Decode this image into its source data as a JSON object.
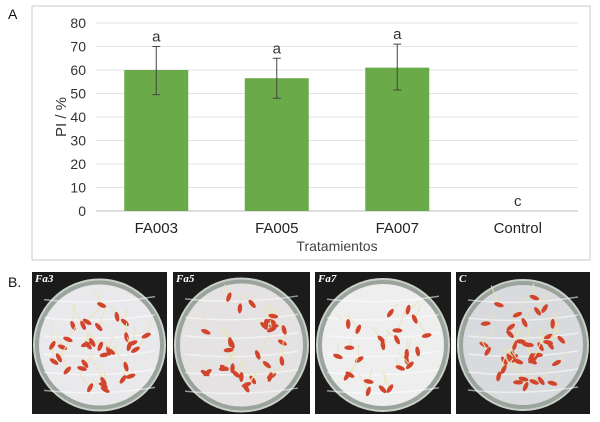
{
  "panels": {
    "a_label": "A",
    "b_label": "B."
  },
  "chart_data": {
    "type": "bar",
    "categories": [
      "FA003",
      "FA005",
      "FA007",
      "Control"
    ],
    "values": [
      60,
      56.5,
      61,
      0
    ],
    "error_low": [
      49.5,
      48,
      51.5,
      0
    ],
    "error_high": [
      70,
      65,
      71,
      0
    ],
    "significance_letters": [
      "a",
      "a",
      "a",
      "c"
    ],
    "ylabel": "PI / %",
    "xlabel": "Tratamientos",
    "ylim": [
      0,
      80
    ],
    "yticks": [
      0,
      10,
      20,
      30,
      40,
      50,
      60,
      70,
      80
    ],
    "grid": true,
    "bar_color": "#6aaa48"
  },
  "photos": [
    {
      "label": "Fa3",
      "dish_tint": "#e9e9ec",
      "seed_count": 34
    },
    {
      "label": "Fa5",
      "dish_tint": "#e4e2e2",
      "seed_count": 30
    },
    {
      "label": "Fa7",
      "dish_tint": "#eeeeee",
      "seed_count": 24
    },
    {
      "label": "C",
      "dish_tint": "#d8dadd",
      "seed_count": 40
    }
  ]
}
